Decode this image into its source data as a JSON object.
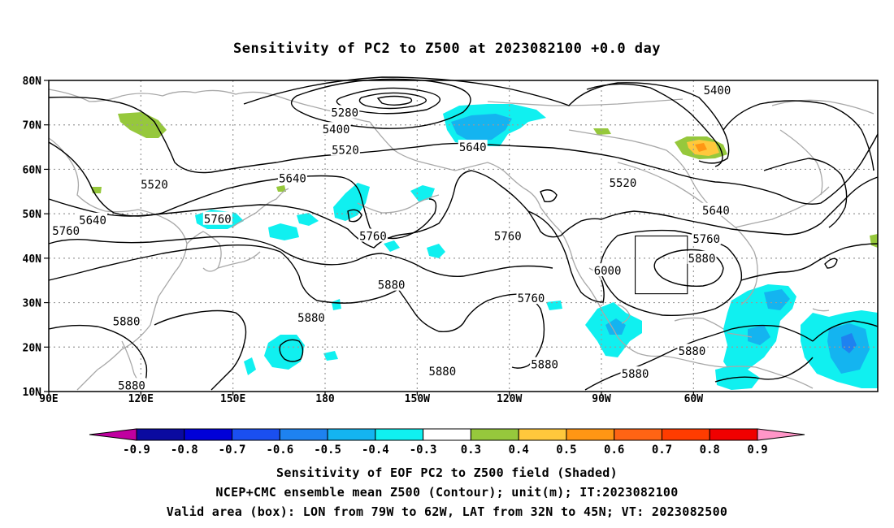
{
  "title": "Sensitivity of PC2 to Z500 at 2023082100 +0.0 day",
  "lat_labels": [
    "80N",
    "70N",
    "60N",
    "50N",
    "40N",
    "30N",
    "20N",
    "10N"
  ],
  "lon_labels": [
    "90E",
    "120E",
    "150E",
    "180",
    "150W",
    "120W",
    "90W",
    "60W"
  ],
  "contour_labels": [
    {
      "text": "5400",
      "lon": -52.3,
      "lat": 77.8
    },
    {
      "text": "5280",
      "lon": -173.6,
      "lat": 72.8
    },
    {
      "text": "5400",
      "lon": -176.4,
      "lat": 69.0
    },
    {
      "text": "5520",
      "lon": -173.4,
      "lat": 64.4
    },
    {
      "text": "5640",
      "lon": -131.9,
      "lat": 65.0
    },
    {
      "text": "5520",
      "lon": -83.0,
      "lat": 57.0
    },
    {
      "text": "5520",
      "lon": 124.4,
      "lat": 56.6
    },
    {
      "text": "5640",
      "lon": 169.4,
      "lat": 58.0
    },
    {
      "text": "5640",
      "lon": -52.7,
      "lat": 50.8
    },
    {
      "text": "5640",
      "lon": 104.3,
      "lat": 48.6
    },
    {
      "text": "5760",
      "lon": 95.6,
      "lat": 46.2
    },
    {
      "text": "5760",
      "lon": -55.8,
      "lat": 44.4
    },
    {
      "text": "5760",
      "lon": 145.0,
      "lat": 48.8
    },
    {
      "text": "5760",
      "lon": -164.4,
      "lat": 45.0
    },
    {
      "text": "5760",
      "lon": -120.5,
      "lat": 45.0
    },
    {
      "text": "5880",
      "lon": -57.3,
      "lat": 40.0
    },
    {
      "text": "6000",
      "lon": -88.0,
      "lat": 37.2
    },
    {
      "text": "5880",
      "lon": -158.4,
      "lat": 34.0
    },
    {
      "text": "5760",
      "lon": -112.9,
      "lat": 31.0
    },
    {
      "text": "5880",
      "lon": 115.3,
      "lat": 25.8
    },
    {
      "text": "5880",
      "lon": 175.5,
      "lat": 26.6
    },
    {
      "text": "5880",
      "lon": -141.8,
      "lat": 14.6
    },
    {
      "text": "5880",
      "lon": -108.5,
      "lat": 16.1
    },
    {
      "text": "5880",
      "lon": -60.5,
      "lat": 19.1
    },
    {
      "text": "5880",
      "lon": -79.0,
      "lat": 14.0
    },
    {
      "text": "5880",
      "lon": 117.0,
      "lat": 11.4
    }
  ],
  "valid_box": {
    "lon_west": -79,
    "lon_east": -62,
    "lat_south": 32,
    "lat_north": 45
  },
  "colorbar": {
    "ticks": [
      "-0.9",
      "-0.8",
      "-0.7",
      "-0.6",
      "-0.5",
      "-0.4",
      "-0.3",
      "0.3",
      "0.4",
      "0.5",
      "0.6",
      "0.7",
      "0.8",
      "0.9"
    ],
    "colors": [
      "#c000a0",
      "#0a0aa0",
      "#0000d8",
      "#1a4ff0",
      "#1e82f0",
      "#14b4f0",
      "#10f0f0",
      "#ffffff",
      "#96c83c",
      "#ffc83c",
      "#ff9614",
      "#ff6414",
      "#ff3c00",
      "#f00000",
      "#ff96c8"
    ]
  },
  "footer": {
    "line1": "Sensitivity of EOF PC2 to Z500 field (Shaded)",
    "line2": "NCEP+CMC ensemble mean Z500 (Contour); unit(m); IT:2023082100",
    "line3": "Valid area (box): LON from 79W to 62W, LAT from 32N to 45N; VT: 2023082500"
  }
}
